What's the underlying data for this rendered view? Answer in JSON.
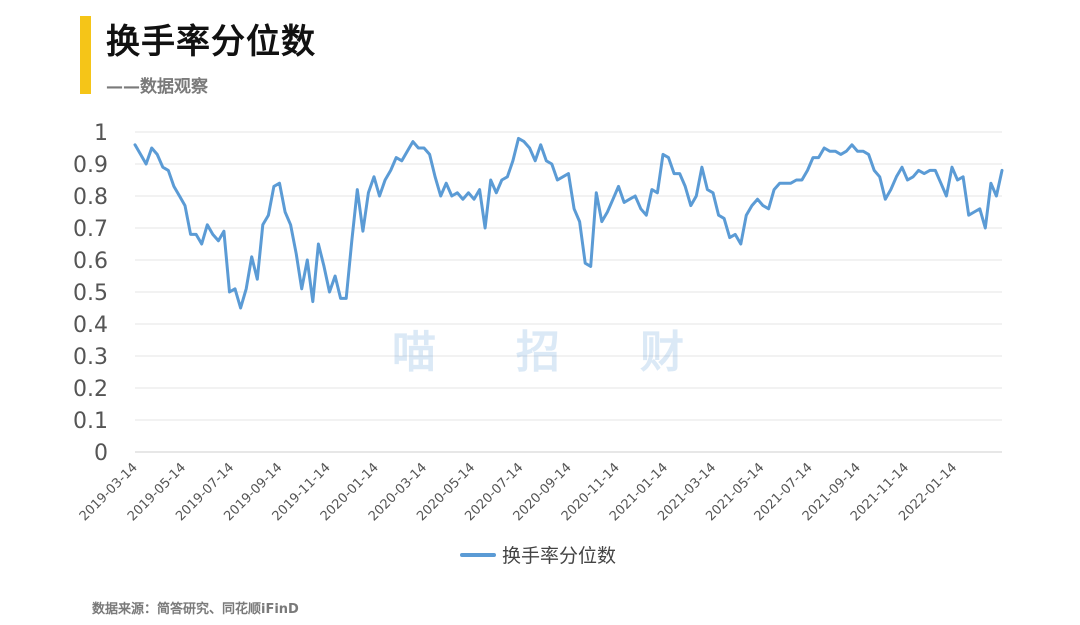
{
  "header": {
    "title": "换手率分位数",
    "subtitle": "——数据观察"
  },
  "watermark": [
    "喵",
    "招",
    "财"
  ],
  "footer": {
    "source": "数据来源：简答研究、同花顺iFinD"
  },
  "colors": {
    "accent": "#F5C518",
    "series": "#5B9BD5"
  },
  "chart_data": {
    "type": "line",
    "xlabel": "",
    "ylabel": "",
    "ylim": [
      0,
      1
    ],
    "y_ticks": [
      "0",
      "0.1",
      "0.2",
      "0.3",
      "0.4",
      "0.5",
      "0.6",
      "0.7",
      "0.8",
      "0.9",
      "1"
    ],
    "x_ticks": [
      "2019-03-14",
      "2019-05-14",
      "2019-07-14",
      "2019-09-14",
      "2019-11-14",
      "2020-01-14",
      "2020-03-14",
      "2020-05-14",
      "2020-07-14",
      "2020-09-14",
      "2020-11-14",
      "2021-01-14",
      "2021-03-14",
      "2021-05-14",
      "2021-07-14",
      "2021-09-14",
      "2021-11-14",
      "2022-01-14"
    ],
    "grid": true,
    "legend": "bottom",
    "series": [
      {
        "name": "换手率分位数",
        "values": [
          0.96,
          0.93,
          0.9,
          0.95,
          0.93,
          0.89,
          0.88,
          0.83,
          0.8,
          0.77,
          0.68,
          0.68,
          0.65,
          0.71,
          0.68,
          0.66,
          0.69,
          0.5,
          0.51,
          0.45,
          0.51,
          0.61,
          0.54,
          0.71,
          0.74,
          0.83,
          0.84,
          0.75,
          0.71,
          0.62,
          0.51,
          0.6,
          0.47,
          0.65,
          0.58,
          0.5,
          0.55,
          0.48,
          0.48,
          0.66,
          0.82,
          0.69,
          0.81,
          0.86,
          0.8,
          0.85,
          0.88,
          0.92,
          0.91,
          0.94,
          0.97,
          0.95,
          0.95,
          0.93,
          0.86,
          0.8,
          0.84,
          0.8,
          0.81,
          0.79,
          0.81,
          0.79,
          0.82,
          0.7,
          0.85,
          0.81,
          0.85,
          0.86,
          0.91,
          0.98,
          0.97,
          0.95,
          0.91,
          0.96,
          0.91,
          0.9,
          0.85,
          0.86,
          0.87,
          0.76,
          0.72,
          0.59,
          0.58,
          0.81,
          0.72,
          0.75,
          0.79,
          0.83,
          0.78,
          0.79,
          0.8,
          0.76,
          0.74,
          0.82,
          0.81,
          0.93,
          0.92,
          0.87,
          0.87,
          0.83,
          0.77,
          0.8,
          0.89,
          0.82,
          0.81,
          0.74,
          0.73,
          0.67,
          0.68,
          0.65,
          0.74,
          0.77,
          0.79,
          0.77,
          0.76,
          0.82,
          0.84,
          0.84,
          0.84,
          0.85,
          0.85,
          0.88,
          0.92,
          0.92,
          0.95,
          0.94,
          0.94,
          0.93,
          0.94,
          0.96,
          0.94,
          0.94,
          0.93,
          0.88,
          0.86,
          0.79,
          0.82,
          0.86,
          0.89,
          0.85,
          0.86,
          0.88,
          0.87,
          0.88,
          0.88,
          0.84,
          0.8,
          0.89,
          0.85,
          0.86,
          0.74,
          0.75,
          0.76,
          0.7,
          0.84,
          0.8,
          0.88
        ]
      }
    ]
  }
}
